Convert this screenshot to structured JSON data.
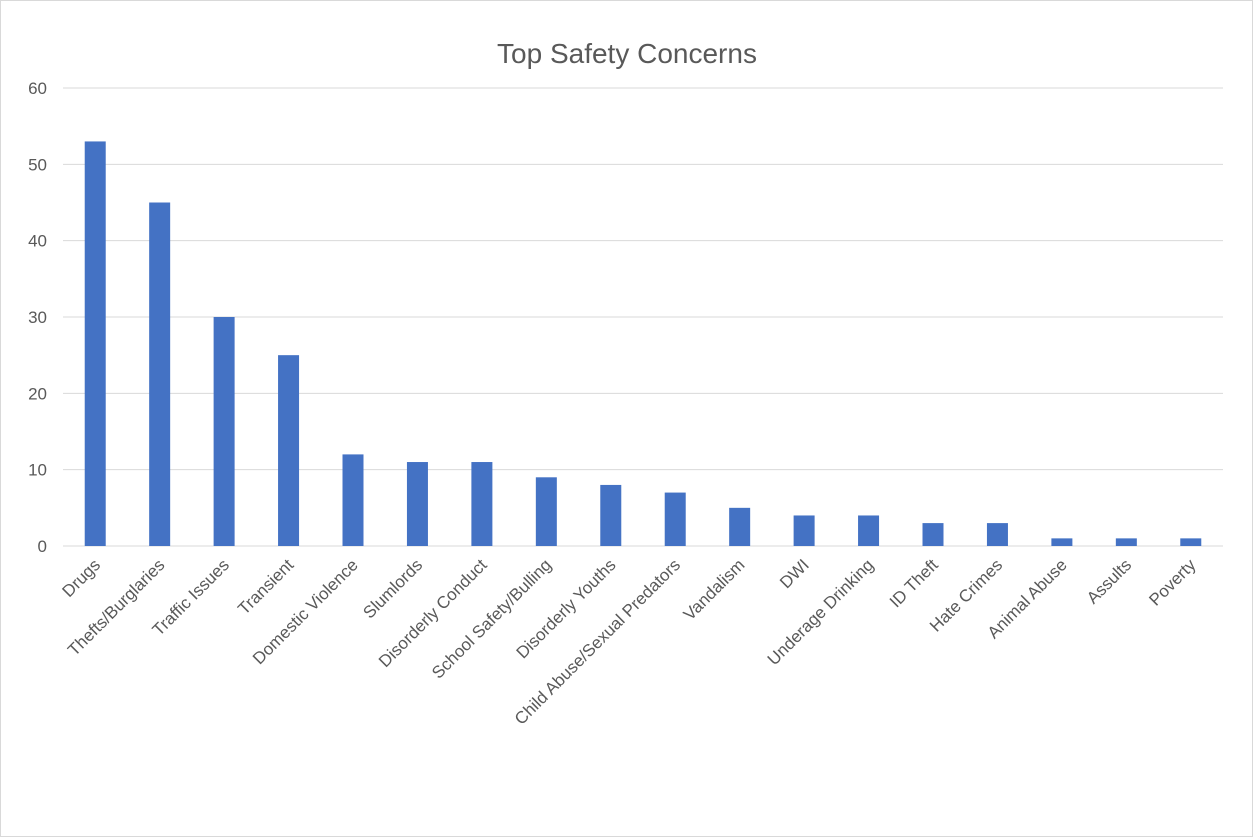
{
  "chart_data": {
    "type": "bar",
    "title": "Top Safety Concerns",
    "categories": [
      "Drugs",
      "Thefts/Burglaries",
      "Traffic Issues",
      "Transient",
      "Domestic Violence",
      "Slumlords",
      "Disorderly Conduct",
      "School Safety/Bulling",
      "Disorderly Youths",
      "Child Abuse/Sexual Predators",
      "Vandalism",
      "DWI",
      "Underage Drinking",
      "ID Theft",
      "Hate Crimes",
      "Animal Abuse",
      "Assults",
      "Poverty"
    ],
    "values": [
      53,
      45,
      30,
      25,
      12,
      11,
      11,
      9,
      8,
      7,
      5,
      4,
      4,
      3,
      3,
      1,
      1,
      1
    ],
    "ylim": [
      0,
      60
    ],
    "yticks": [
      0,
      10,
      20,
      30,
      40,
      50,
      60
    ],
    "grid": true,
    "legend": "none",
    "bar_color": "#4472c4",
    "grid_color": "#d9d9d9",
    "text_color": "#595959"
  }
}
